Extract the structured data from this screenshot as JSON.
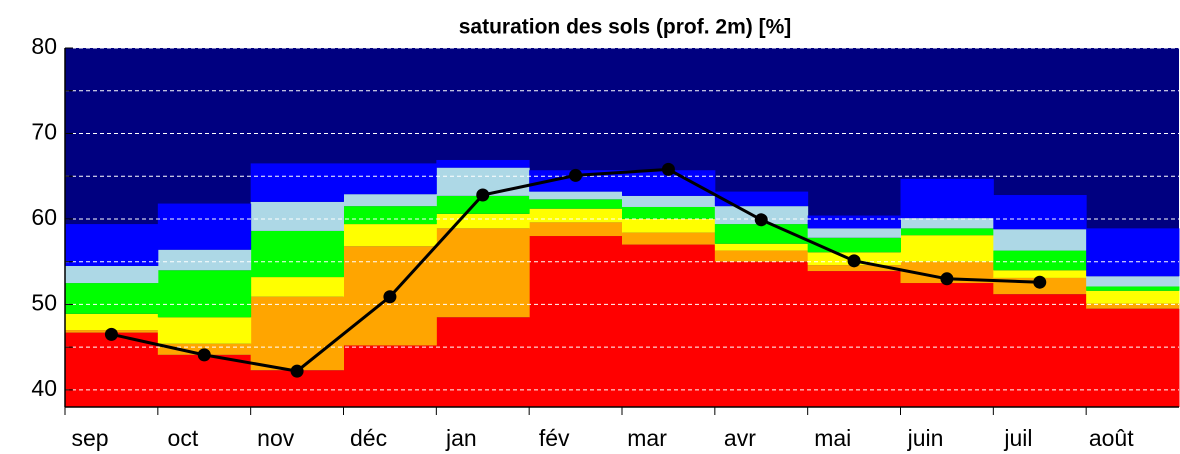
{
  "chart_data": {
    "type": "band",
    "title": "saturation des sols (prof. 2m) [%]",
    "categories": [
      "sep",
      "oct",
      "nov",
      "déc",
      "jan",
      "fév",
      "mar",
      "avr",
      "mai",
      "juin",
      "juil",
      "août"
    ],
    "background_color": "#000080",
    "series": [
      {
        "color": "#ff0000",
        "values": [
          46.7,
          44.1,
          42.3,
          45.2,
          48.5,
          58.0,
          57.0,
          55.0,
          53.9,
          52.5,
          51.2,
          49.5
        ]
      },
      {
        "color": "#ffa500",
        "values": [
          47.0,
          45.4,
          50.9,
          56.8,
          58.9,
          59.6,
          58.4,
          56.3,
          54.6,
          55.0,
          53.1,
          50.1
        ]
      },
      {
        "color": "#ffff00",
        "values": [
          48.9,
          48.5,
          53.2,
          59.4,
          60.6,
          61.2,
          60.0,
          57.1,
          56.1,
          58.1,
          54.0,
          51.6
        ]
      },
      {
        "color": "#00ff00",
        "values": [
          52.5,
          54.0,
          58.6,
          61.5,
          62.7,
          62.3,
          61.4,
          59.4,
          57.8,
          58.9,
          56.3,
          52.1
        ]
      },
      {
        "color": "#add8e6",
        "values": [
          54.5,
          56.4,
          62.0,
          62.9,
          66.0,
          63.2,
          62.7,
          61.5,
          58.9,
          60.1,
          58.8,
          53.3
        ]
      },
      {
        "color": "#0000ff",
        "values": [
          59.4,
          61.8,
          66.5,
          66.5,
          66.9,
          65.7,
          65.7,
          63.2,
          60.4,
          64.7,
          62.8,
          58.9
        ]
      }
    ],
    "line": {
      "color": "#000000",
      "values": [
        46.5,
        44.1,
        42.2,
        50.9,
        62.8,
        65.1,
        65.8,
        59.9,
        55.1,
        53.0,
        52.6,
        null
      ]
    },
    "ylim": [
      38,
      80
    ],
    "yticks": [
      40,
      50,
      60,
      70,
      80
    ],
    "minor_yticks": [
      45,
      55,
      65,
      75
    ],
    "grid": true
  }
}
